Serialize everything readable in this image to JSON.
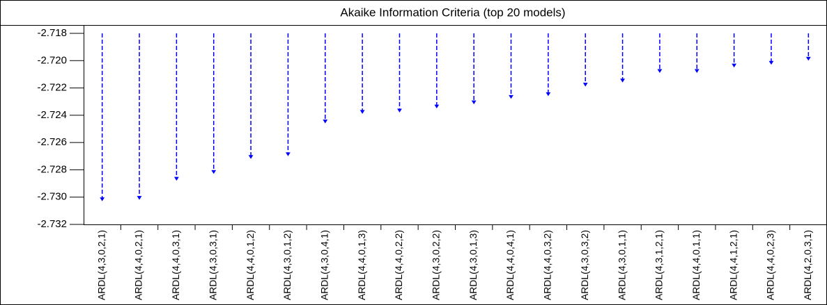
{
  "chart_data": {
    "type": "spike",
    "title": "Akaike Information Criteria (top 20 models)",
    "categories": [
      "ARDL(4,3,0,2,1)",
      "ARDL(4,4,0,2,1)",
      "ARDL(4,4,0,3,1)",
      "ARDL(4,3,0,3,1)",
      "ARDL(4,4,0,1,2)",
      "ARDL(4,3,0,1,2)",
      "ARDL(4,3,0,4,1)",
      "ARDL(4,4,0,1,3)",
      "ARDL(4,4,0,2,2)",
      "ARDL(4,3,0,2,2)",
      "ARDL(4,3,0,1,3)",
      "ARDL(4,4,0,4,1)",
      "ARDL(4,4,0,3,2)",
      "ARDL(4,3,0,3,2)",
      "ARDL(4,3,0,1,1)",
      "ARDL(4,3,1,2,1)",
      "ARDL(4,4,0,1,1)",
      "ARDL(4,4,1,2,1)",
      "ARDL(4,4,0,2,3)",
      "ARDL(4,2,0,3,1)"
    ],
    "values": [
      -2.7302,
      -2.7301,
      -2.7287,
      -2.7282,
      -2.7271,
      -2.7269,
      -2.7245,
      -2.7238,
      -2.7237,
      -2.7234,
      -2.7231,
      -2.7227,
      -2.7225,
      -2.7218,
      -2.7215,
      -2.7208,
      -2.7208,
      -2.7204,
      -2.7202,
      -2.7199
    ],
    "color": "#0000ff",
    "ylim": [
      -2.732,
      -2.718
    ],
    "yticks": [
      {
        "value": -2.732,
        "label": "-2.732"
      },
      {
        "value": -2.73,
        "label": "-2.730"
      },
      -2.728,
      -2.726,
      -2.724,
      -2.722,
      {
        "value": -2.72,
        "label": "-2.720"
      },
      -2.718
    ]
  }
}
